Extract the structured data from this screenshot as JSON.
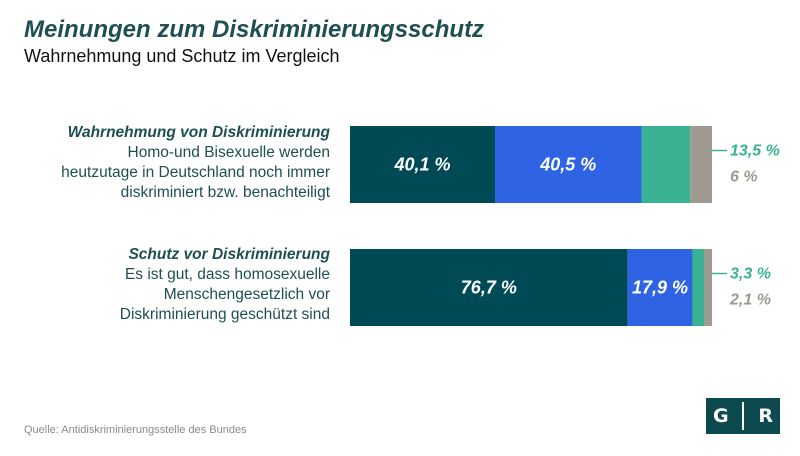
{
  "header": {
    "title": "Meinungen zum Diskriminierungsschutz",
    "subtitle": "Wahrnehmung und Schutz im Vergleich"
  },
  "rows": [
    {
      "heading": "Wahrnehmung von Diskriminierung",
      "lines": [
        "Homo-und Bisexuelle werden",
        "heutzutage in Deutschland noch immer",
        "diskriminiert bzw. benachteiligt"
      ]
    },
    {
      "heading": "Schutz vor Diskriminierung",
      "lines": [
        "Es ist gut, dass homosexuelle",
        "Menschengesetzlich vor",
        "Diskriminierung geschützt sind"
      ]
    }
  ],
  "chart_data": {
    "type": "bar",
    "orientation": "horizontal",
    "stacked": true,
    "categories": [
      "Wahrnehmung von Diskriminierung",
      "Schutz vor Diskriminierung"
    ],
    "series": [
      {
        "values": [
          40.1,
          76.7
        ],
        "labels": [
          "40,1 %",
          "76,7 %"
        ],
        "color": "#004a55",
        "label_position": "inside"
      },
      {
        "values": [
          40.5,
          17.9
        ],
        "labels": [
          "40,5 %",
          "17,9 %"
        ],
        "color": "#2e63e3",
        "label_position": "inside"
      },
      {
        "values": [
          13.5,
          3.3
        ],
        "labels": [
          "13,5 %",
          "3,3 %"
        ],
        "color": "#39b294",
        "label_position": "outside"
      },
      {
        "values": [
          6,
          2.1
        ],
        "labels": [
          "6 %",
          "2,1 %"
        ],
        "color": "#9e9a92",
        "label_position": "outside"
      }
    ]
  },
  "footer": {
    "source": "Quelle: Antidiskriminierungsstelle des Bundes",
    "logo_left": "G",
    "logo_right": "R"
  }
}
